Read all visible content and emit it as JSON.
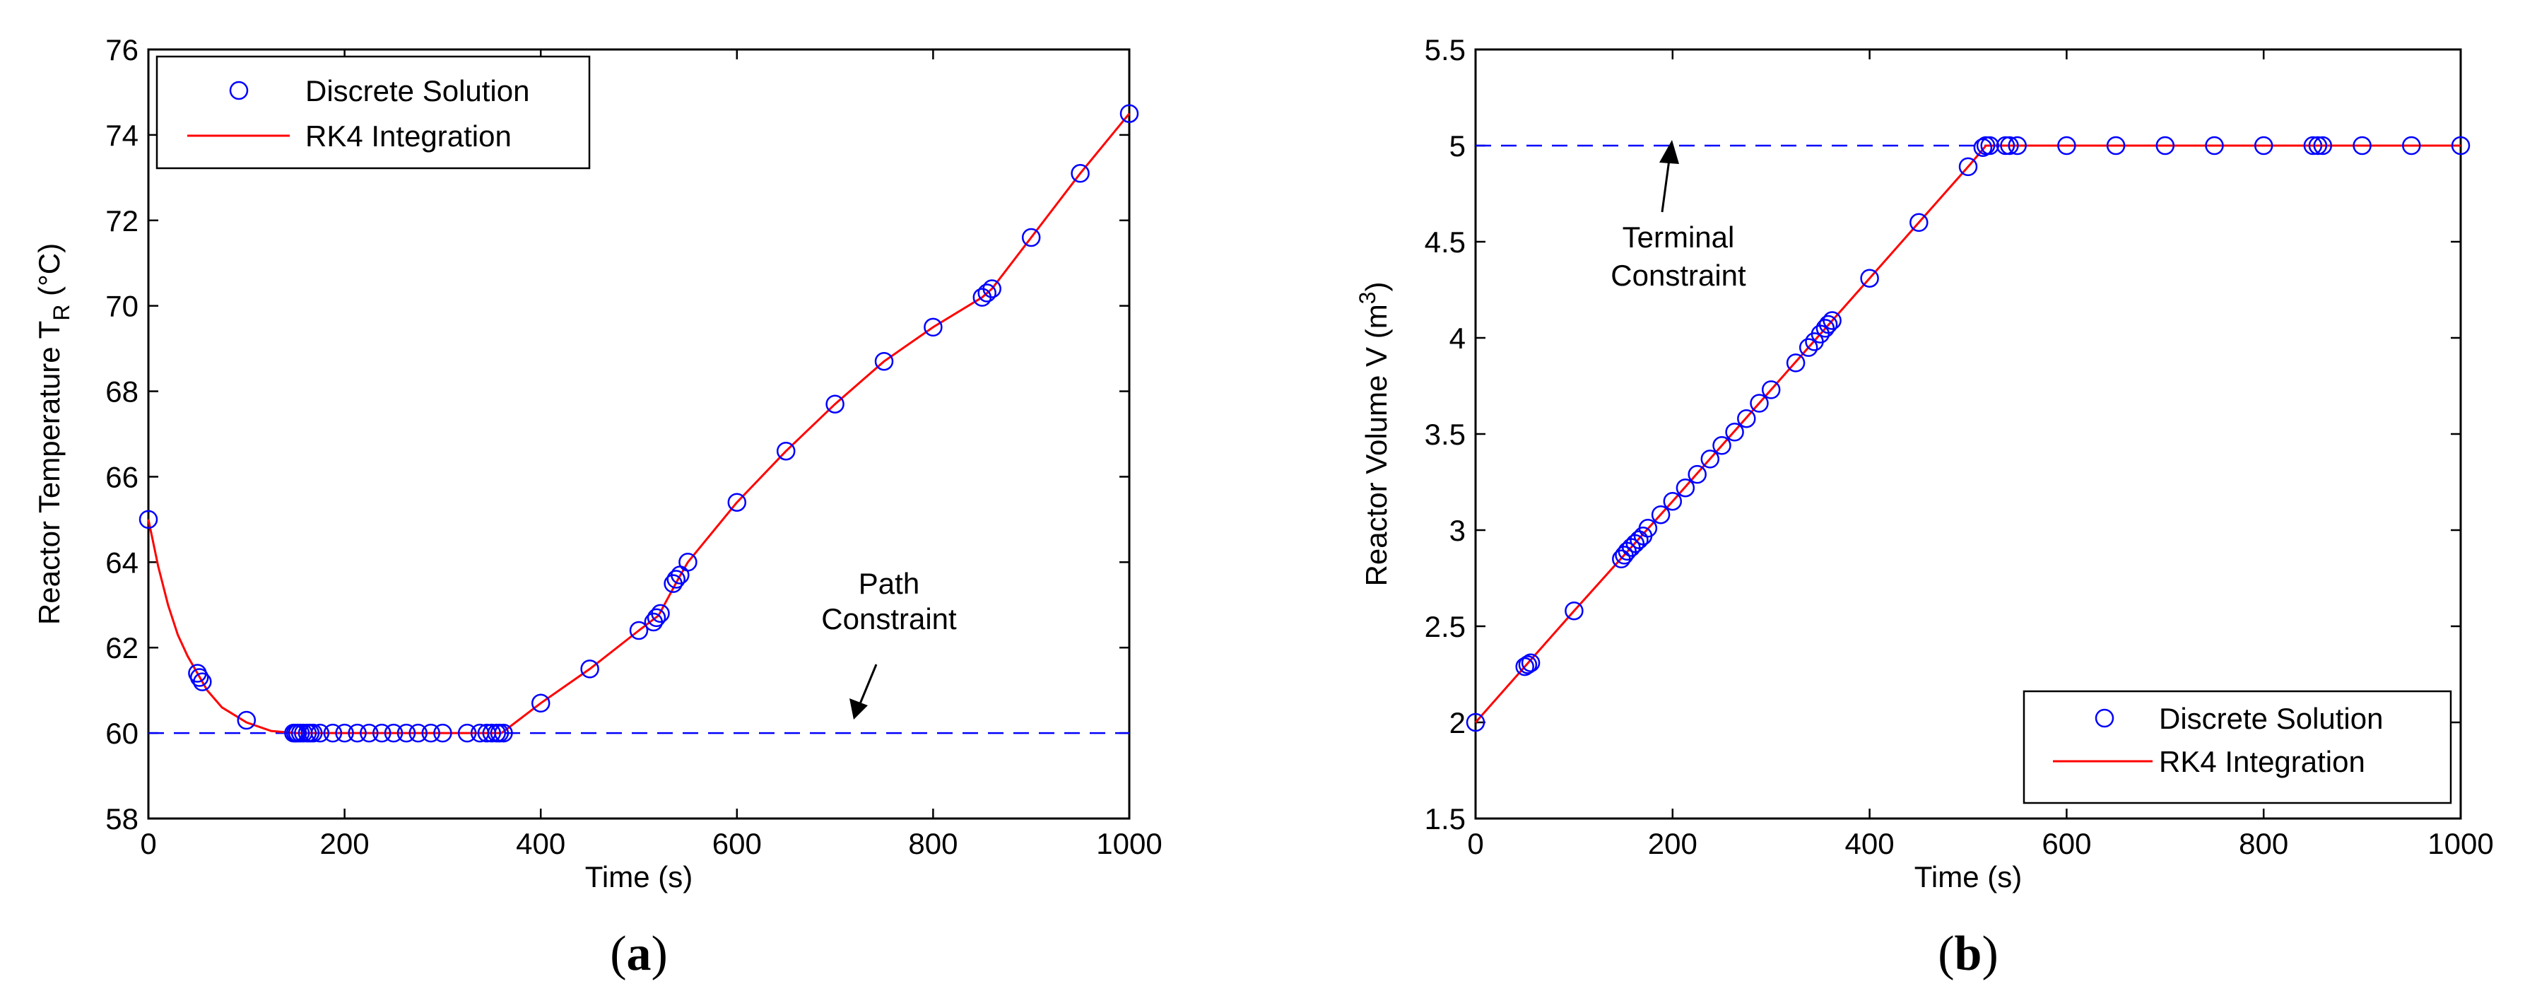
{
  "chart_data": [
    {
      "type": "scatter",
      "panel_label": "a",
      "xlabel": "Time (s)",
      "ylabel": "Reactor Temperature T",
      "ylabel_subscript": "R",
      "ylabel_suffix": " (°C)",
      "xlim": [
        0,
        1000
      ],
      "ylim": [
        58,
        76
      ],
      "xticks": [
        0,
        200,
        400,
        600,
        800,
        1000
      ],
      "yticks": [
        58,
        60,
        62,
        64,
        66,
        68,
        70,
        72,
        74,
        76
      ],
      "legend_location": "top-left",
      "constraint": {
        "value": 60,
        "color": "#0000ff",
        "style": "dashed"
      },
      "annotation": {
        "lines": [
          "Path",
          "Constraint"
        ],
        "x": 715,
        "y": 60
      },
      "series": [
        {
          "name": "Discrete Solution",
          "marker": "circle",
          "color": "#0000ff",
          "points": [
            [
              0,
              65.0
            ],
            [
              50,
              61.4
            ],
            [
              52,
              61.3
            ],
            [
              55,
              61.2
            ],
            [
              100,
              60.3
            ],
            [
              148,
              60.0
            ],
            [
              150,
              60.0
            ],
            [
              152,
              60.0
            ],
            [
              155,
              60.0
            ],
            [
              158,
              60.0
            ],
            [
              162,
              60.0
            ],
            [
              165,
              60.0
            ],
            [
              168,
              60.0
            ],
            [
              175,
              60.0
            ],
            [
              188,
              60.0
            ],
            [
              200,
              60.0
            ],
            [
              213,
              60.0
            ],
            [
              225,
              60.0
            ],
            [
              238,
              60.0
            ],
            [
              250,
              60.0
            ],
            [
              263,
              60.0
            ],
            [
              275,
              60.0
            ],
            [
              288,
              60.0
            ],
            [
              300,
              60.0
            ],
            [
              325,
              60.0
            ],
            [
              338,
              60.0
            ],
            [
              345,
              60.0
            ],
            [
              350,
              60.0
            ],
            [
              355,
              60.0
            ],
            [
              358,
              60.0
            ],
            [
              362,
              60.0
            ],
            [
              400,
              60.7
            ],
            [
              450,
              61.5
            ],
            [
              500,
              62.4
            ],
            [
              515,
              62.6
            ],
            [
              518,
              62.7
            ],
            [
              522,
              62.8
            ],
            [
              535,
              63.5
            ],
            [
              538,
              63.6
            ],
            [
              542,
              63.7
            ],
            [
              550,
              64.0
            ],
            [
              600,
              65.4
            ],
            [
              650,
              66.6
            ],
            [
              700,
              67.7
            ],
            [
              750,
              68.7
            ],
            [
              800,
              69.5
            ],
            [
              850,
              70.2
            ],
            [
              855,
              70.3
            ],
            [
              860,
              70.4
            ],
            [
              900,
              71.6
            ],
            [
              950,
              73.1
            ],
            [
              1000,
              74.5
            ]
          ]
        },
        {
          "name": "RK4 Integration",
          "color": "#ff0000",
          "style": "line",
          "points": [
            [
              0,
              65.0
            ],
            [
              10,
              63.9
            ],
            [
              20,
              63.0
            ],
            [
              30,
              62.3
            ],
            [
              40,
              61.8
            ],
            [
              50,
              61.4
            ],
            [
              60,
              61.0
            ],
            [
              75,
              60.6
            ],
            [
              100,
              60.25
            ],
            [
              125,
              60.05
            ],
            [
              150,
              60.0
            ],
            [
              360,
              60.0
            ],
            [
              400,
              60.7
            ],
            [
              450,
              61.5
            ],
            [
              500,
              62.4
            ],
            [
              520,
              62.75
            ],
            [
              540,
              63.6
            ],
            [
              550,
              64.0
            ],
            [
              600,
              65.4
            ],
            [
              650,
              66.6
            ],
            [
              700,
              67.7
            ],
            [
              750,
              68.7
            ],
            [
              800,
              69.5
            ],
            [
              850,
              70.2
            ],
            [
              860,
              70.4
            ],
            [
              900,
              71.6
            ],
            [
              950,
              73.1
            ],
            [
              1000,
              74.5
            ]
          ]
        }
      ]
    },
    {
      "type": "scatter",
      "panel_label": "b",
      "xlabel": "Time (s)",
      "ylabel": "Reactor Volume  V (m",
      "ylabel_superscript": "3",
      "ylabel_suffix": ")",
      "xlim": [
        0,
        1000
      ],
      "ylim": [
        1.5,
        5.5
      ],
      "xticks": [
        0,
        200,
        400,
        600,
        800,
        1000
      ],
      "yticks": [
        1.5,
        2,
        2.5,
        3,
        3.5,
        4,
        4.5,
        5,
        5.5
      ],
      "legend_location": "bottom-right",
      "constraint": {
        "value": 5,
        "color": "#0000ff",
        "style": "dashed"
      },
      "annotation": {
        "lines": [
          "Terminal",
          "Constraint"
        ],
        "x": 195,
        "y": 5
      },
      "series": [
        {
          "name": "Discrete Solution",
          "marker": "circle",
          "color": "#0000ff",
          "points": [
            [
              0,
              2.0
            ],
            [
              50,
              2.29
            ],
            [
              53,
              2.3
            ],
            [
              56,
              2.31
            ],
            [
              100,
              2.58
            ],
            [
              148,
              2.85
            ],
            [
              151,
              2.87
            ],
            [
              154,
              2.89
            ],
            [
              158,
              2.91
            ],
            [
              162,
              2.93
            ],
            [
              166,
              2.95
            ],
            [
              170,
              2.97
            ],
            [
              175,
              3.01
            ],
            [
              188,
              3.08
            ],
            [
              200,
              3.15
            ],
            [
              213,
              3.22
            ],
            [
              225,
              3.29
            ],
            [
              238,
              3.37
            ],
            [
              250,
              3.44
            ],
            [
              263,
              3.51
            ],
            [
              275,
              3.58
            ],
            [
              288,
              3.66
            ],
            [
              300,
              3.73
            ],
            [
              325,
              3.87
            ],
            [
              338,
              3.95
            ],
            [
              344,
              3.98
            ],
            [
              350,
              4.02
            ],
            [
              355,
              4.05
            ],
            [
              358,
              4.07
            ],
            [
              362,
              4.09
            ],
            [
              400,
              4.31
            ],
            [
              450,
              4.6
            ],
            [
              500,
              4.89
            ],
            [
              515,
              4.99
            ],
            [
              518,
              5.0
            ],
            [
              522,
              5.0
            ],
            [
              538,
              5.0
            ],
            [
              542,
              5.0
            ],
            [
              550,
              5.0
            ],
            [
              600,
              5.0
            ],
            [
              650,
              5.0
            ],
            [
              700,
              5.0
            ],
            [
              750,
              5.0
            ],
            [
              800,
              5.0
            ],
            [
              850,
              5.0
            ],
            [
              855,
              5.0
            ],
            [
              860,
              5.0
            ],
            [
              900,
              5.0
            ],
            [
              950,
              5.0
            ],
            [
              1000,
              5.0
            ]
          ]
        },
        {
          "name": "RK4 Integration",
          "color": "#ff0000",
          "style": "line",
          "points": [
            [
              0,
              2.0
            ],
            [
              100,
              2.58
            ],
            [
              200,
              3.15
            ],
            [
              300,
              3.73
            ],
            [
              400,
              4.31
            ],
            [
              450,
              4.6
            ],
            [
              500,
              4.89
            ],
            [
              515,
              4.98
            ],
            [
              518,
              5.0
            ],
            [
              1000,
              5.0
            ]
          ]
        }
      ]
    }
  ]
}
